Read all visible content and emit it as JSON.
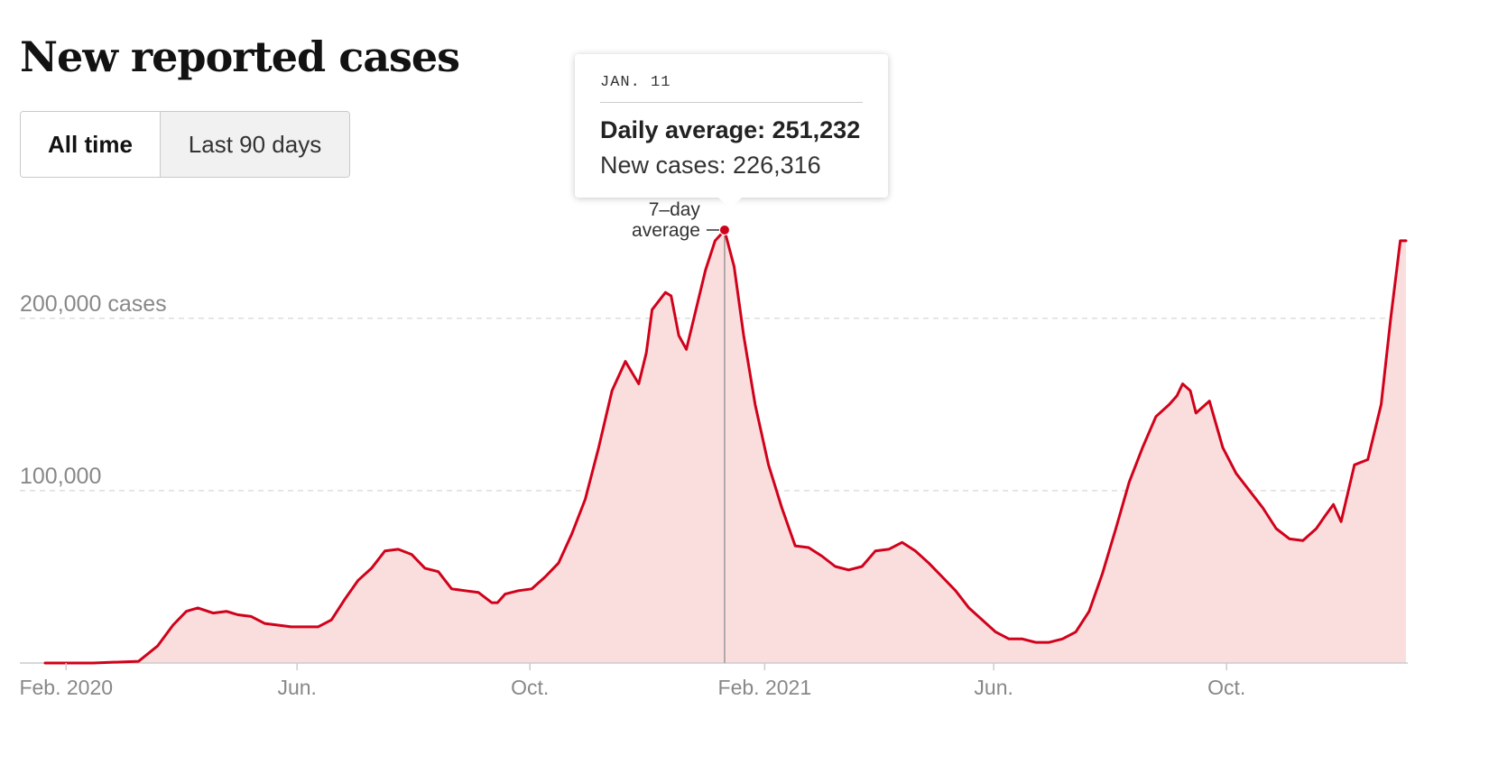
{
  "header": {
    "title": "New reported cases"
  },
  "toggle": {
    "all_time": "All time",
    "last_90": "Last 90 days"
  },
  "tooltip": {
    "date": "JAN. 11",
    "daily_average": "Daily average: 251,232",
    "new_cases": "New cases: 226,316"
  },
  "colors": {
    "line": "#d0021b",
    "fill": "#fadede",
    "grid": "#dddddd",
    "axis_text": "#888888"
  },
  "chart_data": {
    "type": "area",
    "title": "New reported cases",
    "annotation": {
      "line1": "7–day",
      "line2": "average",
      "x": "2021-01-11",
      "y": 251232
    },
    "yticks": [
      {
        "value": 100000,
        "label": "100,000"
      },
      {
        "value": 200000,
        "label": "200,000 cases"
      }
    ],
    "xticks": [
      {
        "value": "2020-02-01",
        "label": "Feb. 2020"
      },
      {
        "value": "2020-06-01",
        "label": "Jun."
      },
      {
        "value": "2020-10-01",
        "label": "Oct."
      },
      {
        "value": "2021-02-01",
        "label": "Feb. 2021"
      },
      {
        "value": "2021-06-01",
        "label": "Jun."
      },
      {
        "value": "2021-10-01",
        "label": "Oct."
      }
    ],
    "xlim": [
      "2020-01-21",
      "2022-01-03"
    ],
    "ylim": [
      0,
      280000
    ],
    "grid": "horizontal dashed",
    "series": [
      {
        "x": [
          "2020-01-21",
          "2020-02-15",
          "2020-03-10",
          "2020-03-20",
          "2020-03-28",
          "2020-04-04",
          "2020-04-10",
          "2020-04-18",
          "2020-04-25",
          "2020-05-01",
          "2020-05-08",
          "2020-05-15",
          "2020-05-22",
          "2020-05-29",
          "2020-06-05",
          "2020-06-12",
          "2020-06-19",
          "2020-06-26",
          "2020-07-03",
          "2020-07-10",
          "2020-07-17",
          "2020-07-24",
          "2020-07-31",
          "2020-08-07",
          "2020-08-14",
          "2020-08-21",
          "2020-08-28",
          "2020-09-04",
          "2020-09-11",
          "2020-09-14",
          "2020-09-18",
          "2020-09-25",
          "2020-10-02",
          "2020-10-09",
          "2020-10-16",
          "2020-10-23",
          "2020-10-30",
          "2020-11-06",
          "2020-11-13",
          "2020-11-20",
          "2020-11-27",
          "2020-12-01",
          "2020-12-04",
          "2020-12-11",
          "2020-12-14",
          "2020-12-18",
          "2020-12-22",
          "2020-12-27",
          "2021-01-01",
          "2021-01-06",
          "2021-01-11",
          "2021-01-16",
          "2021-01-21",
          "2021-01-27",
          "2021-02-03",
          "2021-02-10",
          "2021-02-17",
          "2021-02-24",
          "2021-03-03",
          "2021-03-10",
          "2021-03-17",
          "2021-03-24",
          "2021-03-31",
          "2021-04-07",
          "2021-04-14",
          "2021-04-21",
          "2021-04-28",
          "2021-05-05",
          "2021-05-12",
          "2021-05-19",
          "2021-05-26",
          "2021-06-02",
          "2021-06-09",
          "2021-06-16",
          "2021-06-23",
          "2021-06-30",
          "2021-07-07",
          "2021-07-14",
          "2021-07-21",
          "2021-07-28",
          "2021-08-04",
          "2021-08-11",
          "2021-08-18",
          "2021-08-25",
          "2021-09-01",
          "2021-09-05",
          "2021-09-08",
          "2021-09-12",
          "2021-09-15",
          "2021-09-22",
          "2021-09-29",
          "2021-10-06",
          "2021-10-13",
          "2021-10-20",
          "2021-10-27",
          "2021-11-03",
          "2021-11-10",
          "2021-11-17",
          "2021-11-22",
          "2021-11-26",
          "2021-11-30",
          "2021-12-07",
          "2021-12-14",
          "2021-12-21",
          "2021-12-26",
          "2021-12-31",
          "2022-01-03"
        ],
        "y": [
          0,
          0,
          1000,
          10000,
          22000,
          30000,
          32000,
          29000,
          30000,
          28000,
          27000,
          23000,
          22000,
          21000,
          21000,
          21000,
          25000,
          37000,
          48000,
          55000,
          65000,
          66000,
          63000,
          55000,
          53000,
          43000,
          42000,
          41000,
          35000,
          35000,
          40000,
          42000,
          43000,
          50000,
          58000,
          75000,
          95000,
          125000,
          158000,
          175000,
          162000,
          180000,
          205000,
          215000,
          213000,
          190000,
          182000,
          205000,
          228000,
          245000,
          251000,
          230000,
          190000,
          150000,
          115000,
          90000,
          68000,
          67000,
          62000,
          56000,
          54000,
          56000,
          65000,
          66000,
          70000,
          65000,
          58000,
          50000,
          42000,
          32000,
          25000,
          18000,
          14000,
          14000,
          12000,
          12000,
          14000,
          18000,
          30000,
          52000,
          78000,
          105000,
          125000,
          143000,
          150000,
          155000,
          162000,
          158000,
          145000,
          152000,
          125000,
          110000,
          100000,
          90000,
          78000,
          72000,
          71000,
          78000,
          86000,
          92000,
          82000,
          115000,
          118000,
          150000,
          200000,
          245000,
          245000
        ]
      }
    ]
  }
}
